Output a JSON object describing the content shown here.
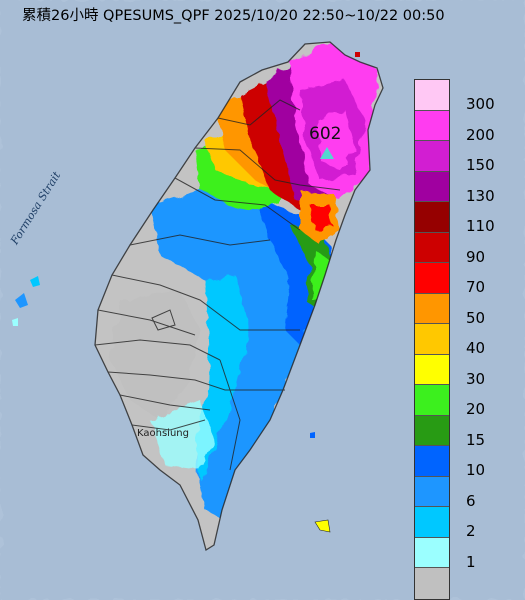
{
  "title": "累積26小時 QPESUMS_QPF 2025/10/20 22:50~10/22 00:50",
  "map": {
    "strait_label": "Formosa Strait",
    "city_label": "Kaohsiung",
    "peak_value": "602"
  },
  "legend": {
    "items": [
      {
        "label": "300",
        "color": "#ffc8f4"
      },
      {
        "label": "200",
        "color": "#ff3cf0"
      },
      {
        "label": "150",
        "color": "#d21ed2"
      },
      {
        "label": "130",
        "color": "#a000a0"
      },
      {
        "label": "110",
        "color": "#960000"
      },
      {
        "label": "90",
        "color": "#cd0000"
      },
      {
        "label": "70",
        "color": "#ff0000"
      },
      {
        "label": "50",
        "color": "#ff9600"
      },
      {
        "label": "40",
        "color": "#ffc800"
      },
      {
        "label": "30",
        "color": "#ffff00"
      },
      {
        "label": "20",
        "color": "#3cf01e"
      },
      {
        "label": "15",
        "color": "#289b14"
      },
      {
        "label": "10",
        "color": "#0064ff"
      },
      {
        "label": "6",
        "color": "#1e96ff"
      },
      {
        "label": "2",
        "color": "#00c8ff"
      },
      {
        "label": "1",
        "color": "#9bffff"
      },
      {
        "label": "",
        "color": "#c0c0c0"
      }
    ]
  }
}
